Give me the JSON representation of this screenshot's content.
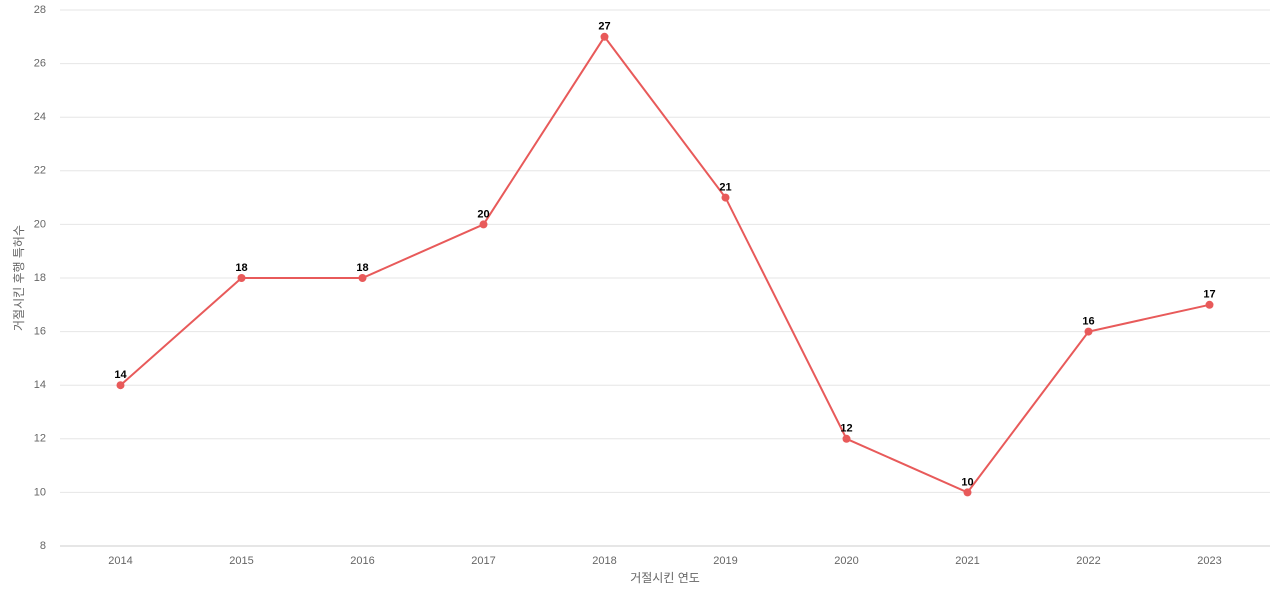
{
  "chart_data": {
    "type": "line",
    "x_label": "거절시킨 연도",
    "y_label": "거절시킨 후행 특허수",
    "categories": [
      "2014",
      "2015",
      "2016",
      "2017",
      "2018",
      "2019",
      "2020",
      "2021",
      "2022",
      "2023"
    ],
    "series": [
      {
        "name": "거절시킨 후행 특허수",
        "color": "#e85a5a",
        "values": [
          14,
          18,
          18,
          20,
          27,
          21,
          12,
          10,
          16,
          17
        ]
      }
    ],
    "ylim": [
      8,
      28
    ],
    "yticks": [
      8,
      10,
      12,
      14,
      16,
      18,
      20,
      22,
      24,
      26,
      28
    ],
    "grid": true
  }
}
